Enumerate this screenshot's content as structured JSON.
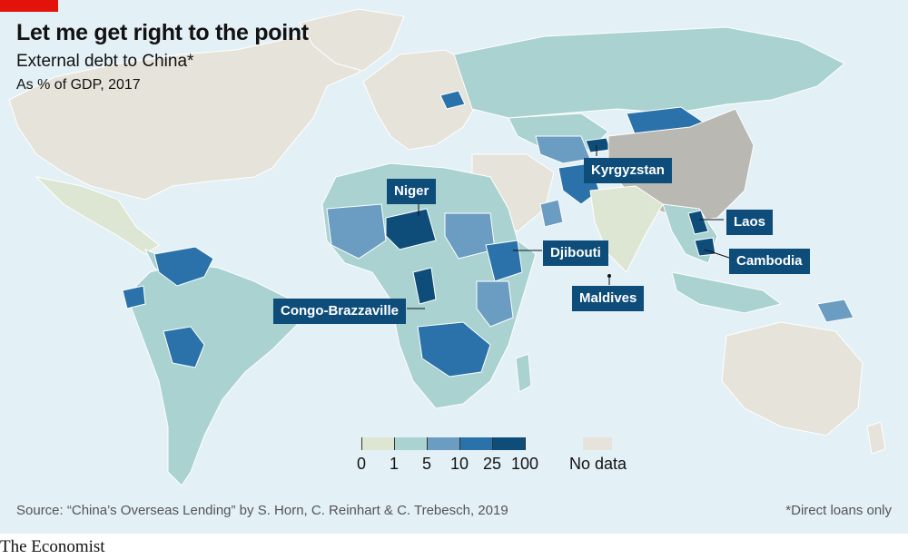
{
  "title": "Let me get right to the point",
  "subtitle": "External debt to China*",
  "unit": "As % of GDP, 2017",
  "callouts": {
    "niger": "Niger",
    "kyrgyzstan": "Kyrgyzstan",
    "laos": "Laos",
    "djibouti": "Djibouti",
    "cambodia": "Cambodia",
    "maldives": "Maldives",
    "congo": "Congo-Brazzaville"
  },
  "legend": {
    "ticks": [
      "0",
      "1",
      "5",
      "10",
      "25",
      "100"
    ],
    "no_data": "No data",
    "colors": [
      "#dde6d2",
      "#a9d2d0",
      "#6b9dc3",
      "#2a72a9",
      "#0e4d7a"
    ],
    "no_data_color": "#e6e3da"
  },
  "source": "Source: “China’s Overseas Lending” by S. Horn, C. Reinhart & C. Trebesch, 2019",
  "footnote": "*Direct loans only",
  "brand": "The Economist"
}
